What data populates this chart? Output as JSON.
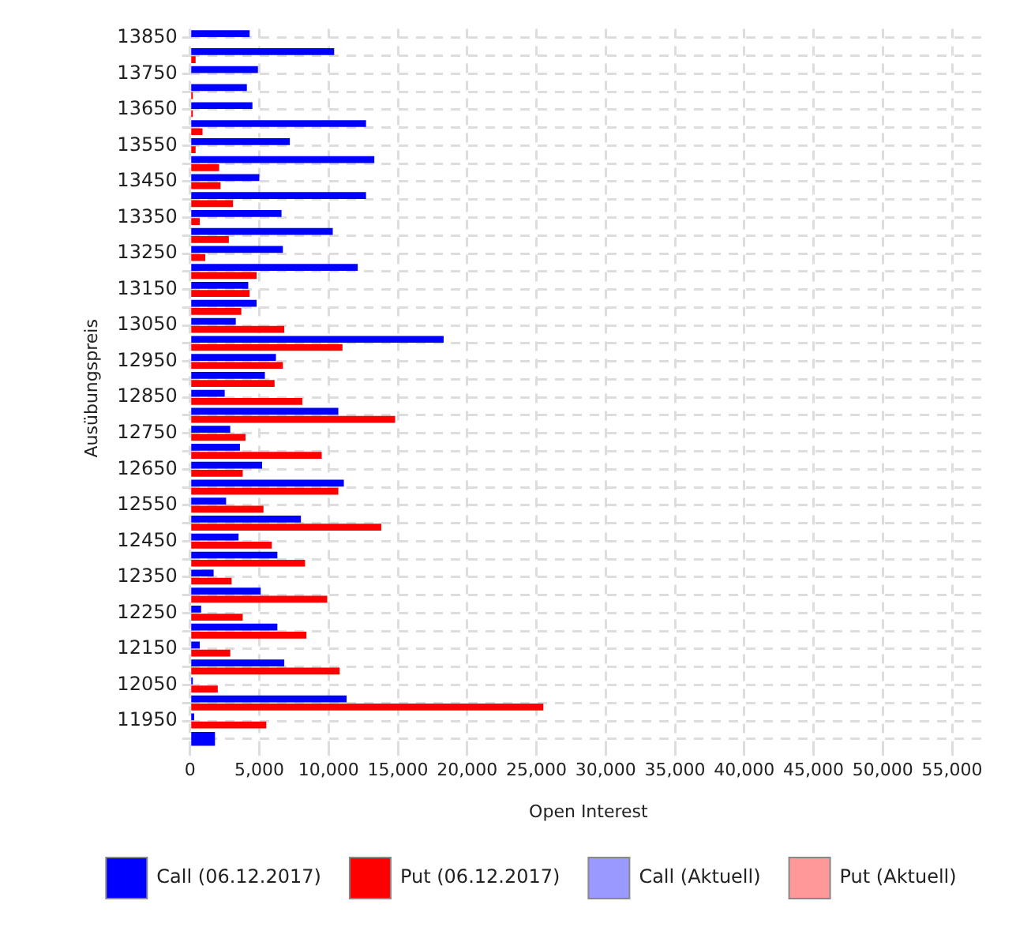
{
  "chart_data": {
    "type": "bar",
    "orientation": "horizontal",
    "xlabel": "Open Interest",
    "ylabel": "Ausübungspreis",
    "categories": [
      "13850",
      null,
      "13750",
      null,
      "13650",
      null,
      "13550",
      null,
      "13450",
      null,
      "13350",
      null,
      "13250",
      null,
      "13150",
      null,
      "13050",
      null,
      "12950",
      null,
      "12850",
      null,
      "12750",
      null,
      "12650",
      null,
      "12550",
      null,
      "12450",
      null,
      "12350",
      null,
      "12250",
      null,
      "12150",
      null,
      "12050",
      null,
      "11950",
      null
    ],
    "series": [
      {
        "name": "Call (06.12.2017)",
        "color": "#0000ff",
        "values": [
          4300,
          10400,
          4900,
          4100,
          4500,
          12700,
          7200,
          13300,
          5000,
          12700,
          6600,
          10300,
          6700,
          12100,
          4200,
          4800,
          3300,
          18300,
          6200,
          5400,
          2500,
          10700,
          2900,
          3600,
          5200,
          11100,
          2600,
          8000,
          3500,
          6300,
          1700,
          5100,
          800,
          6300,
          700,
          6800,
          200,
          11300,
          300,
          1800
        ]
      },
      {
        "name": "Put (06.12.2017)",
        "color": "#ff0000",
        "values": [
          0,
          400,
          0,
          200,
          200,
          900,
          400,
          2100,
          2200,
          3100,
          700,
          2800,
          1100,
          4800,
          4300,
          3700,
          6800,
          11000,
          6700,
          6100,
          8100,
          14800,
          4000,
          9500,
          3800,
          10700,
          5300,
          13800,
          5900,
          8300,
          3000,
          9900,
          3800,
          8400,
          2900,
          10800,
          2000,
          25500,
          5500,
          null
        ]
      },
      {
        "name": "Call (Aktuell)",
        "color": "#9999ff",
        "values": [
          null,
          null,
          null,
          null,
          null,
          null,
          null,
          null,
          null,
          null,
          null,
          null,
          null,
          null,
          null,
          null,
          null,
          null,
          null,
          null,
          null,
          null,
          null,
          null,
          null,
          null,
          null,
          null,
          null,
          null,
          null,
          null,
          null,
          null,
          null,
          null,
          null,
          null,
          null,
          null
        ]
      },
      {
        "name": "Put (Aktuell)",
        "color": "#ff9999",
        "values": [
          null,
          null,
          null,
          null,
          null,
          null,
          null,
          null,
          null,
          null,
          null,
          null,
          null,
          null,
          null,
          null,
          null,
          null,
          null,
          null,
          null,
          null,
          null,
          null,
          null,
          null,
          null,
          null,
          null,
          null,
          null,
          null,
          null,
          null,
          null,
          null,
          null,
          null,
          null,
          null
        ]
      }
    ],
    "xlim": [
      0,
      57500
    ],
    "xticks": [
      {
        "value": 0,
        "label": "0"
      },
      {
        "value": 5000,
        "label": "5,000"
      },
      {
        "value": 10000,
        "label": "10,000"
      },
      {
        "value": 15000,
        "label": "15,000"
      },
      {
        "value": 20000,
        "label": "20,000"
      },
      {
        "value": 25000,
        "label": "25,000"
      },
      {
        "value": 30000,
        "label": "30,000"
      },
      {
        "value": 35000,
        "label": "35,000"
      },
      {
        "value": 40000,
        "label": "40,000"
      },
      {
        "value": 45000,
        "label": "45,000"
      },
      {
        "value": 50000,
        "label": "50,000"
      },
      {
        "value": 55000,
        "label": "55,000"
      }
    ],
    "grid": true,
    "legend": "bottom"
  }
}
